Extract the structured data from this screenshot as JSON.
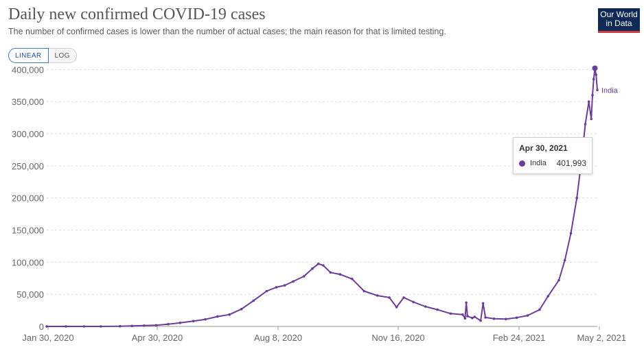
{
  "header": {
    "title": "Daily new confirmed COVID-19 cases",
    "subtitle": "The number of confirmed cases is lower than the number of actual cases; the main reason for that is limited testing.",
    "logo_line1": "Our World",
    "logo_line2": "in Data"
  },
  "scale_toggle": {
    "linear_label": "LINEAR",
    "log_label": "LOG",
    "selected": "LINEAR"
  },
  "tooltip": {
    "date": "Apr 30, 2021",
    "series": "India",
    "value": "401,993"
  },
  "colors": {
    "series": "#6b3d99",
    "grid": "#dddddd",
    "axis": "#999999",
    "text": "#666666",
    "accent": "#3c78c8"
  },
  "chart_data": {
    "type": "line",
    "title": "Daily new confirmed COVID-19 cases",
    "subtitle": "The number of confirmed cases is lower than the number of actual cases; the main reason for that is limited testing.",
    "xlabel": "",
    "ylabel": "",
    "x_type": "date",
    "x_ticks": [
      "Jan 30, 2020",
      "Apr 30, 2020",
      "Aug 8, 2020",
      "Nov 16, 2020",
      "Feb 24, 2021",
      "May 2, 2021"
    ],
    "y_ticks": [
      0,
      50000,
      100000,
      150000,
      200000,
      250000,
      300000,
      350000,
      400000
    ],
    "y_tick_labels": [
      "0",
      "50,000",
      "100,000",
      "150,000",
      "200,000",
      "250,000",
      "300,000",
      "350,000",
      "400,000"
    ],
    "ylim": [
      0,
      410000
    ],
    "xlim": [
      "2020-01-30",
      "2021-05-02"
    ],
    "grid": "horizontal",
    "legend": "end-label",
    "series": [
      {
        "name": "India",
        "end_label": "India",
        "points": [
          [
            "2020-01-30",
            1
          ],
          [
            "2020-02-15",
            0
          ],
          [
            "2020-03-01",
            0
          ],
          [
            "2020-03-15",
            20
          ],
          [
            "2020-03-31",
            300
          ],
          [
            "2020-04-10",
            800
          ],
          [
            "2020-04-20",
            1300
          ],
          [
            "2020-04-30",
            1800
          ],
          [
            "2020-05-10",
            3500
          ],
          [
            "2020-05-20",
            5600
          ],
          [
            "2020-05-31",
            8300
          ],
          [
            "2020-06-10",
            11000
          ],
          [
            "2020-06-20",
            15400
          ],
          [
            "2020-06-30",
            18500
          ],
          [
            "2020-07-10",
            27000
          ],
          [
            "2020-07-20",
            40000
          ],
          [
            "2020-07-31",
            55000
          ],
          [
            "2020-08-08",
            61000
          ],
          [
            "2020-08-15",
            64000
          ],
          [
            "2020-08-22",
            70000
          ],
          [
            "2020-08-31",
            78000
          ],
          [
            "2020-09-07",
            90000
          ],
          [
            "2020-09-12",
            97500
          ],
          [
            "2020-09-16",
            95000
          ],
          [
            "2020-09-22",
            84000
          ],
          [
            "2020-09-30",
            81000
          ],
          [
            "2020-10-10",
            74000
          ],
          [
            "2020-10-20",
            55000
          ],
          [
            "2020-10-31",
            48000
          ],
          [
            "2020-11-10",
            45000
          ],
          [
            "2020-11-16",
            30000
          ],
          [
            "2020-11-22",
            45000
          ],
          [
            "2020-11-30",
            38000
          ],
          [
            "2020-12-10",
            31000
          ],
          [
            "2020-12-20",
            26000
          ],
          [
            "2020-12-31",
            20000
          ],
          [
            "2021-01-10",
            18500
          ],
          [
            "2021-01-12",
            12500
          ],
          [
            "2021-01-13",
            37000
          ],
          [
            "2021-01-14",
            16000
          ],
          [
            "2021-01-18",
            13000
          ],
          [
            "2021-01-20",
            15000
          ],
          [
            "2021-01-25",
            9000
          ],
          [
            "2021-01-27",
            36000
          ],
          [
            "2021-01-29",
            14000
          ],
          [
            "2021-02-05",
            12000
          ],
          [
            "2021-02-15",
            11500
          ],
          [
            "2021-02-24",
            13700
          ],
          [
            "2021-03-05",
            17000
          ],
          [
            "2021-03-15",
            26000
          ],
          [
            "2021-03-22",
            47000
          ],
          [
            "2021-03-31",
            72000
          ],
          [
            "2021-04-05",
            103000
          ],
          [
            "2021-04-10",
            145000
          ],
          [
            "2021-04-15",
            200000
          ],
          [
            "2021-04-19",
            260000
          ],
          [
            "2021-04-22",
            315000
          ],
          [
            "2021-04-25",
            350000
          ],
          [
            "2021-04-27",
            323000
          ],
          [
            "2021-04-28",
            360000
          ],
          [
            "2021-04-29",
            385000
          ],
          [
            "2021-04-30",
            401993
          ],
          [
            "2021-05-01",
            392000
          ],
          [
            "2021-05-02",
            368000
          ]
        ]
      }
    ],
    "highlight": {
      "date": "2021-04-30",
      "value": 401993
    }
  }
}
